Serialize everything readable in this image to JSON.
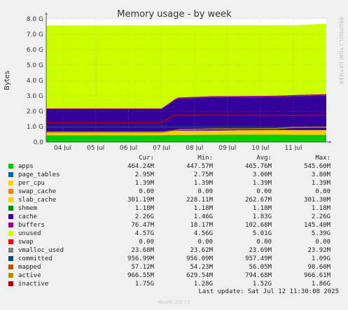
{
  "chart_data": {
    "type": "area",
    "title": "Memory usage - by week",
    "ylabel": "Bytes",
    "side_label": "RRDTOOL / TOBI OETIKER",
    "ylim": [
      0,
      8.0
    ],
    "y_unit": "G",
    "yticks": [
      "0.0",
      "1.0 G",
      "2.0 G",
      "3.0 G",
      "4.0 G",
      "5.0 G",
      "6.0 G",
      "7.0 G",
      "8.0 G"
    ],
    "xticks": [
      "04 Jul",
      "05 Jul",
      "06 Jul",
      "07 Jul",
      "08 Jul",
      "09 Jul",
      "10 Jul",
      "11 Jul"
    ],
    "x_days": [
      0,
      8.5
    ],
    "x": [
      0,
      3.4,
      3.5,
      3.9,
      4.0,
      5.0,
      6.0,
      7.0,
      7.5,
      8.5
    ],
    "series": [
      {
        "name": "apps",
        "values": [
          0.44,
          0.44,
          0.44,
          0.46,
          0.46,
          0.47,
          0.48,
          0.48,
          0.47,
          0.47
        ]
      },
      {
        "name": "page_tables",
        "values": [
          0.003,
          0.003,
          0.003,
          0.003,
          0.003,
          0.003,
          0.003,
          0.003,
          0.003,
          0.003
        ]
      },
      {
        "name": "per_cpu",
        "values": [
          0.0014,
          0.0014,
          0.0014,
          0.0014,
          0.0014,
          0.0014,
          0.0014,
          0.0014,
          0.0014,
          0.0014
        ]
      },
      {
        "name": "slab_cache",
        "values": [
          0.23,
          0.23,
          0.23,
          0.25,
          0.27,
          0.27,
          0.28,
          0.3,
          0.3,
          0.3
        ]
      },
      {
        "name": "shmem",
        "values": [
          0.0012,
          0.0012,
          0.0012,
          0.0012,
          0.0012,
          0.0012,
          0.0012,
          0.0012,
          0.0012,
          0.0012
        ]
      },
      {
        "name": "cache",
        "values": [
          1.46,
          1.46,
          1.46,
          2.0,
          2.08,
          2.15,
          2.15,
          2.15,
          2.2,
          2.26
        ]
      },
      {
        "name": "buffers",
        "values": [
          0.05,
          0.05,
          0.05,
          0.07,
          0.08,
          0.08,
          0.08,
          0.08,
          0.08,
          0.08
        ]
      },
      {
        "name": "unused",
        "values": [
          5.39,
          5.39,
          5.39,
          4.79,
          4.69,
          4.61,
          4.59,
          4.57,
          4.53,
          4.57
        ]
      }
    ],
    "lines": [
      {
        "name": "committed",
        "values": [
          0.96,
          0.96,
          0.96,
          0.96,
          0.96,
          0.96,
          0.96,
          0.96,
          0.96,
          0.96
        ]
      },
      {
        "name": "active",
        "values": [
          0.63,
          0.63,
          0.63,
          0.75,
          0.8,
          0.85,
          0.85,
          0.88,
          0.95,
          0.97
        ]
      },
      {
        "name": "inactive",
        "values": [
          1.25,
          1.25,
          1.28,
          1.75,
          1.75,
          1.75,
          1.75,
          1.73,
          1.72,
          1.75
        ]
      }
    ],
    "colors": {
      "apps": "#00cc00",
      "page_tables": "#0066b3",
      "per_cpu": "#ffcc00",
      "swap_cache": "#ff8000",
      "slab_cache": "#ffcc00",
      "shmem": "#008f00",
      "cache": "#330099",
      "buffers": "#990099",
      "unused": "#ccff00",
      "swap": "#ff0000",
      "vmalloc_used": "#808080",
      "committed": "#00487d",
      "mapped": "#b35a00",
      "active": "#b38f00",
      "inactive": "#b30000"
    },
    "legend_headers": [
      "Cur:",
      "Min:",
      "Avg:",
      "Max:"
    ],
    "legend": [
      {
        "name": "apps",
        "cur": "464.24M",
        "min": "447.57M",
        "avg": "465.76M",
        "max": "545.60M"
      },
      {
        "name": "page_tables",
        "cur": "2.95M",
        "min": "2.75M",
        "avg": "3.00M",
        "max": "3.80M"
      },
      {
        "name": "per_cpu",
        "cur": "1.39M",
        "min": "1.39M",
        "avg": "1.39M",
        "max": "1.39M"
      },
      {
        "name": "swap_cache",
        "cur": "0.00",
        "min": "0.00",
        "avg": "0.00",
        "max": "0.00"
      },
      {
        "name": "slab_cache",
        "cur": "301.19M",
        "min": "228.11M",
        "avg": "262.67M",
        "max": "301.30M"
      },
      {
        "name": "shmem",
        "cur": "1.18M",
        "min": "1.18M",
        "avg": "1.18M",
        "max": "1.18M"
      },
      {
        "name": "cache",
        "cur": "2.26G",
        "min": "1.46G",
        "avg": "1.83G",
        "max": "2.26G"
      },
      {
        "name": "buffers",
        "cur": "76.47M",
        "min": "18.17M",
        "avg": "102.68M",
        "max": "145.40M"
      },
      {
        "name": "unused",
        "cur": "4.57G",
        "min": "4.56G",
        "avg": "5.01G",
        "max": "5.39G"
      },
      {
        "name": "swap",
        "cur": "0.00",
        "min": "0.00",
        "avg": "0.00",
        "max": "0.00"
      },
      {
        "name": "vmalloc_used",
        "cur": "23.68M",
        "min": "23.62M",
        "avg": "23.69M",
        "max": "23.92M"
      },
      {
        "name": "committed",
        "cur": "956.99M",
        "min": "956.09M",
        "avg": "957.49M",
        "max": "1.09G"
      },
      {
        "name": "mapped",
        "cur": "57.12M",
        "min": "54.23M",
        "avg": "56.05M",
        "max": "98.60M"
      },
      {
        "name": "active",
        "cur": "966.55M",
        "min": "629.54M",
        "avg": "794.68M",
        "max": "966.61M"
      },
      {
        "name": "inactive",
        "cur": "1.75G",
        "min": "1.28G",
        "avg": "1.52G",
        "max": "1.86G"
      }
    ],
    "last_update": "Last update: Sat Jul 12 11:30:08 2025",
    "munin_version": "Munin 2.0.73"
  }
}
